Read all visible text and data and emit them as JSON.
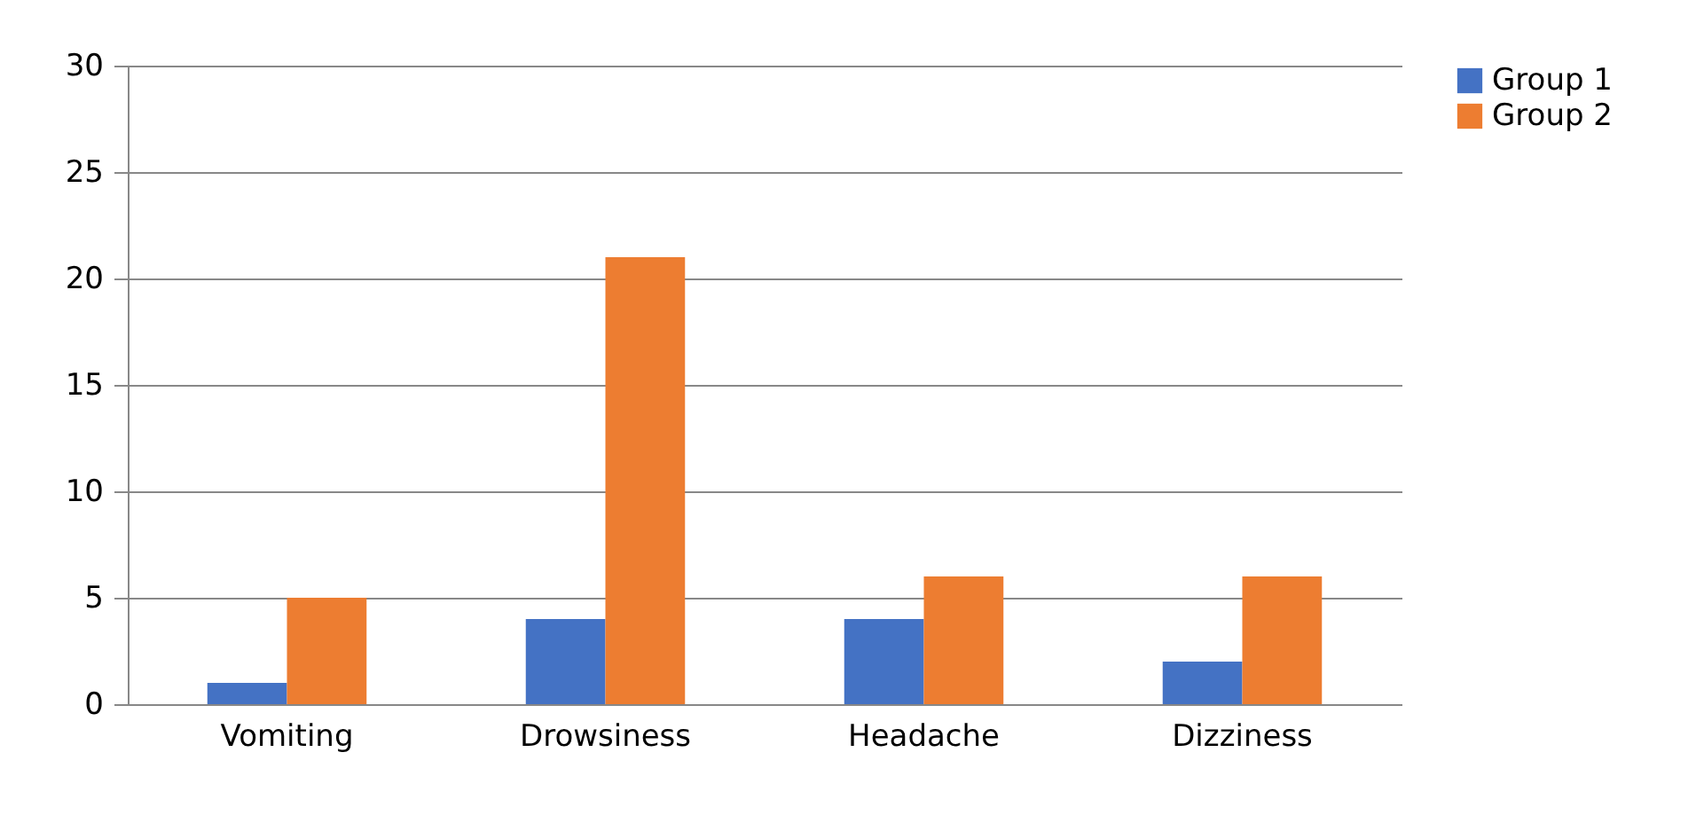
{
  "chart_data": {
    "type": "bar",
    "categories": [
      "Vomiting",
      "Drowsiness",
      "Headache",
      "Dizziness"
    ],
    "series": [
      {
        "name": "Group 1",
        "color": "#4472c4",
        "values": [
          1,
          4,
          4,
          2
        ]
      },
      {
        "name": "Group 2",
        "color": "#ed7d31",
        "values": [
          5,
          21,
          6,
          6
        ]
      }
    ],
    "ylim": [
      0,
      30
    ],
    "yticks": [
      0,
      5,
      10,
      15,
      20,
      25,
      30
    ],
    "grid": "y",
    "legend": "right"
  }
}
